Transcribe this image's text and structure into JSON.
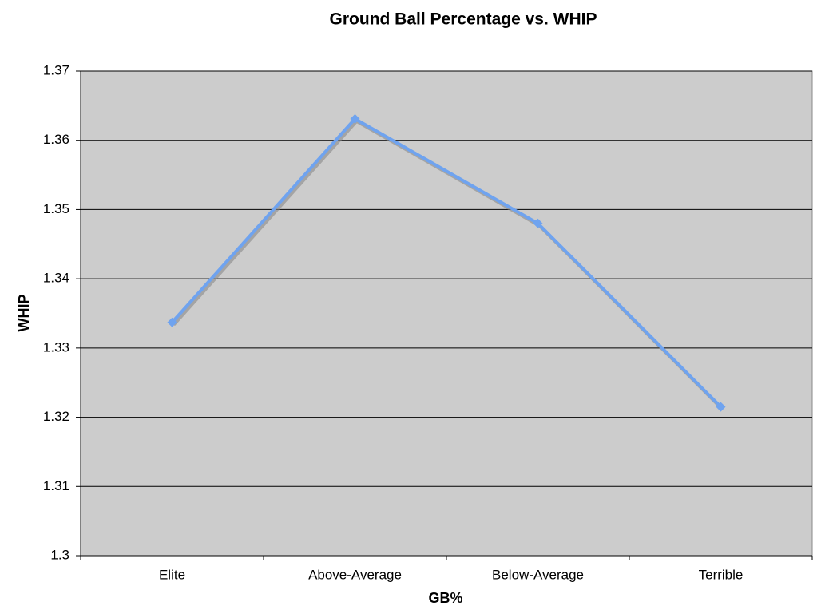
{
  "chart_data": {
    "type": "line",
    "title": "Ground Ball Percentage vs. WHIP",
    "x_label": "GB%",
    "y_label": "WHIP",
    "categories": [
      "Elite",
      "Above-Average",
      "Below-Average",
      "Terrible"
    ],
    "series": [
      {
        "name": "WHIP",
        "color": "#6fa3ef",
        "values": [
          1.3337,
          1.3631,
          1.348,
          1.3215
        ]
      }
    ],
    "ylim": [
      1.3,
      1.37
    ],
    "yticks": [
      1.3,
      1.31,
      1.32,
      1.33,
      1.34,
      1.35,
      1.36,
      1.37
    ],
    "grid": true,
    "plot_background": "#cccccc"
  }
}
